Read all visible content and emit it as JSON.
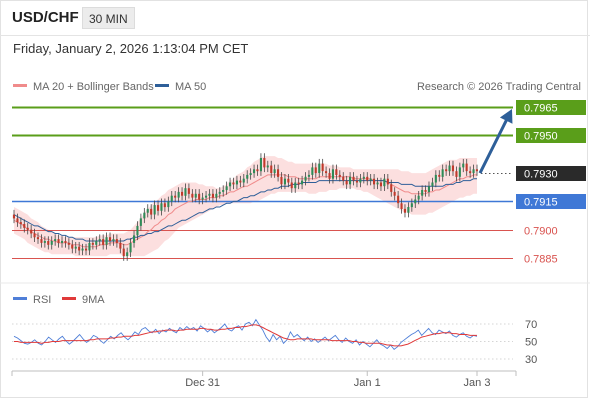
{
  "header": {
    "pair": "USD/CHF",
    "timeframe": "30 MIN",
    "datetime": "Friday, January 2, 2026 1:13:04 PM CET"
  },
  "colors": {
    "resistance": "#5a9e1a",
    "support": "#3f78d6",
    "pivot_line": "#d9534f",
    "current_price_bg": "#2a2a2a",
    "ma20": "#f08b8b",
    "bollinger_fill": "#fbd9d9",
    "ma50": "#2e5f99",
    "candle_up": "#2e8b57",
    "candle_down": "#c0392b",
    "arrow": "#2e5f99",
    "rsi": "#4f7fd8",
    "rsi_ma": "#e03a3a"
  },
  "chart_data": [
    {
      "type": "candlestick",
      "instrument": "USD/CHF",
      "interval": "30 MIN",
      "ylim": [
        0.7878,
        0.7972
      ],
      "legend": {
        "placement": "top-left",
        "items": [
          {
            "name": "MA 20 + Bollinger Bands",
            "color": "#f08b8b"
          },
          {
            "name": "MA 50",
            "color": "#2e5f99"
          }
        ]
      },
      "source": "Research © 2026 Trading Central",
      "levels": [
        {
          "value": "0.7965",
          "kind": "resistance",
          "style": "label"
        },
        {
          "value": "0.7950",
          "kind": "resistance",
          "style": "label"
        },
        {
          "value": "0.7930",
          "kind": "current",
          "style": "label"
        },
        {
          "value": "0.7915",
          "kind": "support",
          "style": "label"
        },
        {
          "value": "0.7900",
          "kind": "pivot",
          "style": "text"
        },
        {
          "value": "0.7885",
          "kind": "pivot",
          "style": "text"
        }
      ],
      "x_ticks": [
        {
          "label": "Dec 31",
          "index": 55
        },
        {
          "label": "Jan 1",
          "index": 103
        },
        {
          "label": "Jan 3",
          "index": 135
        }
      ],
      "close": [
        0.7906,
        0.7904,
        0.7903,
        0.7901,
        0.79,
        0.7898,
        0.7896,
        0.7895,
        0.7893,
        0.7894,
        0.7892,
        0.7894,
        0.7895,
        0.7893,
        0.7894,
        0.7893,
        0.7892,
        0.789,
        0.7891,
        0.7889,
        0.789,
        0.7889,
        0.7893,
        0.7892,
        0.7894,
        0.7895,
        0.7892,
        0.7896,
        0.7894,
        0.7895,
        0.7893,
        0.789,
        0.7886,
        0.7888,
        0.7893,
        0.7897,
        0.7902,
        0.7906,
        0.7909,
        0.7911,
        0.7908,
        0.7913,
        0.791,
        0.7914,
        0.7912,
        0.7915,
        0.7918,
        0.7917,
        0.792,
        0.7918,
        0.7922,
        0.7919,
        0.7917,
        0.7919,
        0.7916,
        0.7917,
        0.7918,
        0.7919,
        0.7917,
        0.7919,
        0.792,
        0.7921,
        0.7923,
        0.7925,
        0.7924,
        0.7926,
        0.7925,
        0.7927,
        0.7929,
        0.793,
        0.7932,
        0.7931,
        0.7938,
        0.7933,
        0.7934,
        0.793,
        0.7932,
        0.7928,
        0.7924,
        0.7927,
        0.7925,
        0.7922,
        0.7925,
        0.7924,
        0.7926,
        0.7928,
        0.7929,
        0.7933,
        0.793,
        0.7935,
        0.7931,
        0.793,
        0.7927,
        0.7932,
        0.7929,
        0.7928,
        0.7926,
        0.7924,
        0.7928,
        0.7926,
        0.7925,
        0.7927,
        0.7928,
        0.7926,
        0.7927,
        0.7924,
        0.7925,
        0.7923,
        0.7927,
        0.7924,
        0.792,
        0.7918,
        0.7914,
        0.7911,
        0.7909,
        0.7912,
        0.7914,
        0.7916,
        0.7918,
        0.7921,
        0.792,
        0.7923,
        0.7925,
        0.7929,
        0.7928,
        0.7932,
        0.7931,
        0.7934,
        0.7931,
        0.7928,
        0.7933,
        0.7935,
        0.7931,
        0.793,
        0.7932,
        0.7931
      ],
      "ma20": [
        0.7905,
        0.7904,
        0.7903,
        0.7902,
        0.79,
        0.7899,
        0.7898,
        0.7897,
        0.7896,
        0.7895,
        0.7895,
        0.7894,
        0.7894,
        0.7893,
        0.7893,
        0.7893,
        0.7893,
        0.7892,
        0.7892,
        0.7892,
        0.7891,
        0.7891,
        0.7891,
        0.7891,
        0.7891,
        0.7892,
        0.7892,
        0.7892,
        0.7893,
        0.7893,
        0.7893,
        0.7893,
        0.7892,
        0.7892,
        0.7893,
        0.7894,
        0.7895,
        0.7896,
        0.7897,
        0.7899,
        0.79,
        0.7902,
        0.7903,
        0.7905,
        0.7906,
        0.7908,
        0.7909,
        0.7911,
        0.7912,
        0.7913,
        0.7914,
        0.7915,
        0.7915,
        0.7916,
        0.7916,
        0.7916,
        0.7916,
        0.7917,
        0.7917,
        0.7917,
        0.7918,
        0.7918,
        0.7919,
        0.792,
        0.792,
        0.7921,
        0.7922,
        0.7923,
        0.7923,
        0.7924,
        0.7925,
        0.7926,
        0.7927,
        0.7928,
        0.7929,
        0.7929,
        0.7929,
        0.7929,
        0.7929,
        0.7929,
        0.7928,
        0.7928,
        0.7928,
        0.7927,
        0.7927,
        0.7927,
        0.7927,
        0.7927,
        0.7927,
        0.7928,
        0.7928,
        0.7928,
        0.7928,
        0.7928,
        0.7928,
        0.7928,
        0.7928,
        0.7928,
        0.7928,
        0.7927,
        0.7927,
        0.7927,
        0.7927,
        0.7927,
        0.7927,
        0.7926,
        0.7926,
        0.7926,
        0.7926,
        0.7925,
        0.7924,
        0.7923,
        0.7922,
        0.7921,
        0.792,
        0.792,
        0.7919,
        0.7919,
        0.7919,
        0.7919,
        0.7919,
        0.792,
        0.792,
        0.7921,
        0.7921,
        0.7922,
        0.7923,
        0.7924,
        0.7925,
        0.7926,
        0.7927,
        0.7927,
        0.7928,
        0.7928,
        0.7929,
        0.7929
      ],
      "bb_upper": [
        0.7912,
        0.7911,
        0.791,
        0.7909,
        0.7908,
        0.7906,
        0.7905,
        0.7904,
        0.7902,
        0.7901,
        0.79,
        0.7899,
        0.7898,
        0.7897,
        0.7897,
        0.7896,
        0.7896,
        0.7896,
        0.7896,
        0.7896,
        0.7896,
        0.7896,
        0.7896,
        0.7896,
        0.7896,
        0.7897,
        0.7897,
        0.7897,
        0.7898,
        0.7898,
        0.7898,
        0.7898,
        0.7898,
        0.7899,
        0.79,
        0.7902,
        0.7904,
        0.7906,
        0.7909,
        0.7911,
        0.7913,
        0.7915,
        0.7916,
        0.7918,
        0.7919,
        0.7921,
        0.7922,
        0.7923,
        0.7924,
        0.7925,
        0.7925,
        0.7925,
        0.7925,
        0.7925,
        0.7924,
        0.7924,
        0.7923,
        0.7923,
        0.7923,
        0.7922,
        0.7922,
        0.7923,
        0.7924,
        0.7926,
        0.7927,
        0.7929,
        0.793,
        0.7931,
        0.7933,
        0.7934,
        0.7936,
        0.7937,
        0.7938,
        0.7939,
        0.7939,
        0.7939,
        0.7939,
        0.7938,
        0.7938,
        0.7937,
        0.7936,
        0.7936,
        0.7935,
        0.7935,
        0.7935,
        0.7935,
        0.7935,
        0.7935,
        0.7935,
        0.7935,
        0.7935,
        0.7935,
        0.7934,
        0.7934,
        0.7934,
        0.7933,
        0.7933,
        0.7933,
        0.7933,
        0.7932,
        0.7932,
        0.7932,
        0.7932,
        0.7932,
        0.7932,
        0.7932,
        0.7932,
        0.7932,
        0.7932,
        0.7932,
        0.7932,
        0.7932,
        0.7932,
        0.7931,
        0.7931,
        0.7931,
        0.793,
        0.793,
        0.793,
        0.793,
        0.793,
        0.7931,
        0.7932,
        0.7933,
        0.7934,
        0.7935,
        0.7936,
        0.7937,
        0.7937,
        0.7937,
        0.7938,
        0.7938,
        0.7938,
        0.7938,
        0.7938,
        0.7938
      ],
      "bb_lower": [
        0.7898,
        0.7897,
        0.7896,
        0.7895,
        0.7893,
        0.7892,
        0.7891,
        0.789,
        0.7889,
        0.7888,
        0.7888,
        0.7887,
        0.7887,
        0.7887,
        0.7887,
        0.7887,
        0.7887,
        0.7887,
        0.7886,
        0.7886,
        0.7886,
        0.7886,
        0.7886,
        0.7886,
        0.7886,
        0.7886,
        0.7886,
        0.7886,
        0.7887,
        0.7887,
        0.7887,
        0.7887,
        0.7886,
        0.7886,
        0.7886,
        0.7886,
        0.7886,
        0.7886,
        0.7886,
        0.7887,
        0.7888,
        0.7889,
        0.789,
        0.7892,
        0.7894,
        0.7895,
        0.7897,
        0.7899,
        0.7901,
        0.7902,
        0.7903,
        0.7904,
        0.7905,
        0.7906,
        0.7907,
        0.7908,
        0.7909,
        0.791,
        0.7911,
        0.7912,
        0.7913,
        0.7913,
        0.7914,
        0.7914,
        0.7914,
        0.7914,
        0.7914,
        0.7914,
        0.7914,
        0.7914,
        0.7915,
        0.7915,
        0.7916,
        0.7917,
        0.7918,
        0.7919,
        0.7919,
        0.792,
        0.792,
        0.792,
        0.792,
        0.792,
        0.792,
        0.792,
        0.792,
        0.792,
        0.7919,
        0.7919,
        0.7919,
        0.792,
        0.792,
        0.792,
        0.7921,
        0.7921,
        0.7921,
        0.7922,
        0.7922,
        0.7922,
        0.7922,
        0.7922,
        0.7921,
        0.7921,
        0.792,
        0.792,
        0.7919,
        0.7918,
        0.7917,
        0.7916,
        0.7915,
        0.7914,
        0.7913,
        0.7912,
        0.7911,
        0.791,
        0.7909,
        0.7909,
        0.7908,
        0.7908,
        0.7908,
        0.7908,
        0.7908,
        0.7909,
        0.7909,
        0.791,
        0.7911,
        0.7912,
        0.7913,
        0.7914,
        0.7915,
        0.7916,
        0.7917,
        0.7917,
        0.7918,
        0.7918,
        0.7919,
        0.7919
      ],
      "ma50": [
        0.7908,
        0.7907,
        0.7906,
        0.7905,
        0.7904,
        0.7903,
        0.7902,
        0.7902,
        0.7901,
        0.79,
        0.7899,
        0.7899,
        0.7898,
        0.7898,
        0.7897,
        0.7897,
        0.7896,
        0.7896,
        0.7895,
        0.7895,
        0.7895,
        0.7894,
        0.7894,
        0.7894,
        0.7894,
        0.7894,
        0.7894,
        0.7894,
        0.7894,
        0.7894,
        0.7894,
        0.7894,
        0.7894,
        0.7895,
        0.7895,
        0.7896,
        0.7896,
        0.7897,
        0.7897,
        0.7898,
        0.7898,
        0.7899,
        0.7899,
        0.79,
        0.7901,
        0.7902,
        0.7902,
        0.7903,
        0.7904,
        0.7905,
        0.7905,
        0.7906,
        0.7907,
        0.7908,
        0.7909,
        0.7909,
        0.791,
        0.7911,
        0.7911,
        0.7912,
        0.7912,
        0.7913,
        0.7914,
        0.7914,
        0.7915,
        0.7915,
        0.7916,
        0.7917,
        0.7917,
        0.7918,
        0.7918,
        0.7919,
        0.792,
        0.792,
        0.7921,
        0.7921,
        0.7922,
        0.7922,
        0.7923,
        0.7923,
        0.7923,
        0.7924,
        0.7924,
        0.7924,
        0.7925,
        0.7925,
        0.7925,
        0.7925,
        0.7925,
        0.7926,
        0.7926,
        0.7926,
        0.7926,
        0.7926,
        0.7926,
        0.7926,
        0.7926,
        0.7926,
        0.7926,
        0.7926,
        0.7926,
        0.7926,
        0.7926,
        0.7926,
        0.7926,
        0.7926,
        0.7926,
        0.7926,
        0.7926,
        0.7925,
        0.7925,
        0.7925,
        0.7925,
        0.7924,
        0.7924,
        0.7924,
        0.7924,
        0.7923,
        0.7923,
        0.7923,
        0.7923,
        0.7923,
        0.7923,
        0.7923,
        0.7923,
        0.7923,
        0.7924,
        0.7924,
        0.7924,
        0.7925,
        0.7925,
        0.7926,
        0.7926,
        0.7926,
        0.7927,
        0.7927
      ],
      "forecast_arrow": {
        "from_index": 135,
        "from_value": 0.793,
        "to_value": 0.7965
      }
    },
    {
      "type": "line",
      "legend": {
        "placement": "top-left",
        "items": [
          {
            "name": "RSI",
            "color": "#4f7fd8"
          },
          {
            "name": "9MA",
            "color": "#e03a3a"
          }
        ]
      },
      "ylim": [
        20,
        80
      ],
      "y_ticks": [
        "70",
        "50",
        "30"
      ],
      "series": [
        {
          "name": "RSI",
          "values": [
            56,
            54,
            51,
            48,
            47,
            49,
            52,
            48,
            46,
            50,
            55,
            52,
            49,
            53,
            56,
            51,
            47,
            50,
            54,
            58,
            53,
            49,
            52,
            57,
            55,
            51,
            48,
            52,
            56,
            53,
            57,
            60,
            55,
            52,
            56,
            61,
            58,
            64,
            66,
            62,
            60,
            64,
            59,
            63,
            61,
            65,
            62,
            60,
            66,
            63,
            67,
            64,
            66,
            62,
            68,
            65,
            61,
            64,
            60,
            63,
            66,
            70,
            64,
            62,
            66,
            68,
            63,
            70,
            72,
            68,
            75,
            69,
            63,
            55,
            50,
            58,
            52,
            56,
            48,
            52,
            61,
            55,
            58,
            54,
            51,
            55,
            50,
            53,
            49,
            52,
            55,
            51,
            54,
            57,
            52,
            49,
            54,
            50,
            48,
            52,
            46,
            50,
            47,
            44,
            48,
            52,
            47,
            45,
            42,
            46,
            41,
            44,
            49,
            52,
            55,
            58,
            60,
            63,
            57,
            61,
            65,
            60,
            58,
            63,
            61,
            59,
            62,
            57,
            55,
            58,
            60,
            56,
            54,
            57,
            56
          ]
        },
        {
          "name": "9MA",
          "values": [
            50,
            50,
            49,
            49,
            49,
            49,
            49,
            49,
            48,
            49,
            49,
            50,
            50,
            50,
            51,
            51,
            51,
            51,
            51,
            51,
            51,
            51,
            52,
            52,
            53,
            53,
            53,
            53,
            54,
            54,
            55,
            55,
            56,
            56,
            56,
            57,
            57,
            58,
            59,
            60,
            61,
            61,
            62,
            62,
            63,
            63,
            63,
            62,
            63,
            63,
            64,
            64,
            64,
            64,
            65,
            65,
            64,
            64,
            63,
            63,
            64,
            64,
            65,
            65,
            66,
            66,
            67,
            67,
            68,
            69,
            69,
            68,
            66,
            64,
            62,
            60,
            58,
            56,
            54,
            53,
            52,
            52,
            53,
            53,
            53,
            53,
            53,
            52,
            52,
            52,
            52,
            52,
            51,
            51,
            51,
            51,
            51,
            51,
            50,
            50,
            49,
            49,
            48,
            48,
            48,
            48,
            48,
            47,
            46,
            46,
            45,
            45,
            45,
            46,
            47,
            49,
            51,
            53,
            55,
            56,
            57,
            58,
            59,
            59,
            60,
            60,
            60,
            59,
            59,
            58,
            58,
            58,
            57,
            57,
            57
          ]
        }
      ]
    }
  ]
}
